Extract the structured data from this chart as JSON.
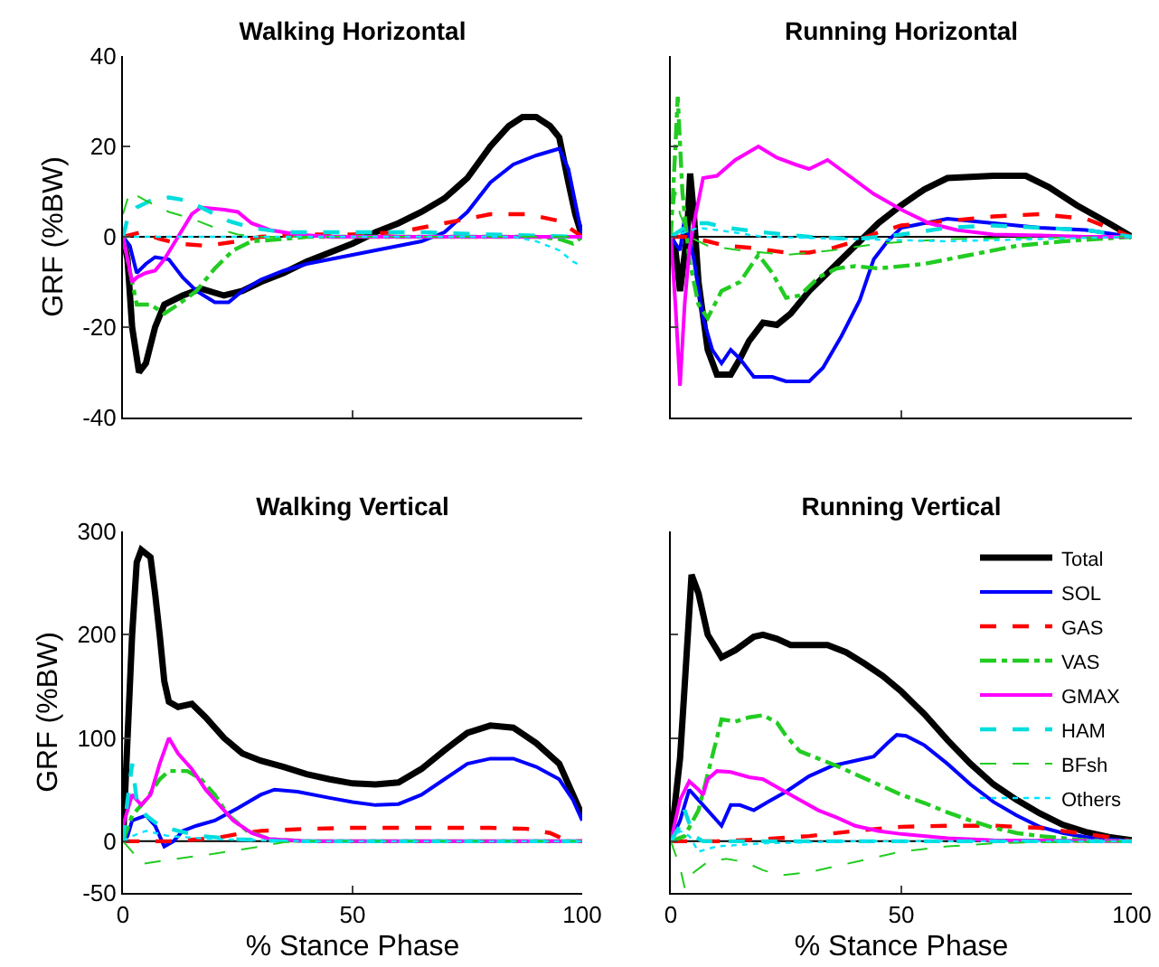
{
  "chart_data": [
    {
      "type": "line",
      "title": "Walking Horizontal",
      "ylabel": "GRF (%BW)",
      "xlim": [
        0,
        100
      ],
      "xticks": [
        {
          "value": 0,
          "label": null
        },
        {
          "value": 50,
          "label": null
        },
        {
          "value": 100,
          "label": null
        }
      ],
      "ylim": [
        -40,
        40
      ],
      "yticks": [
        -40,
        -20,
        0,
        20,
        40
      ],
      "tick_labels": "y",
      "grid": false,
      "legend": false,
      "ref_lines": [
        {
          "axis": "y",
          "value": 0,
          "color": "#000000"
        }
      ],
      "series": [
        {
          "color": "#000000",
          "line_style": "solid",
          "x": [
            0,
            1,
            2,
            3.5,
            5,
            7,
            9,
            13,
            17,
            22,
            26,
            30,
            35,
            40,
            45,
            50,
            55,
            60,
            65,
            70,
            75,
            80,
            84,
            87,
            90,
            93,
            95,
            97,
            98.5,
            100
          ],
          "values": [
            0,
            -5,
            -20,
            -30,
            -28,
            -20,
            -15,
            -13,
            -11.5,
            -13,
            -12,
            -10,
            -8,
            -5.5,
            -3.5,
            -1.5,
            1,
            3,
            5.5,
            8.5,
            13,
            20,
            24.5,
            26.5,
            26.5,
            24.5,
            22,
            12,
            5,
            0
          ]
        },
        {
          "color": "#0000ff",
          "line_style": "solid",
          "x": [
            0,
            1.5,
            3,
            5,
            7,
            10,
            13,
            16,
            20,
            23,
            26,
            30,
            35,
            40,
            50,
            60,
            65,
            70,
            75,
            80,
            85,
            90,
            95,
            97,
            99,
            100
          ],
          "values": [
            0,
            -2,
            -8,
            -6,
            -4.5,
            -5,
            -9,
            -12,
            -14.5,
            -14.5,
            -12,
            -9.5,
            -7.5,
            -6,
            -4,
            -2,
            -1,
            1,
            5.5,
            12,
            16,
            18,
            19.5,
            15,
            5,
            0
          ]
        },
        {
          "color": "#ff0000",
          "line_style": "dashed",
          "x": [
            0,
            4,
            8,
            12,
            18,
            25,
            30,
            40,
            50,
            60,
            70,
            80,
            88,
            95,
            100
          ],
          "values": [
            0,
            1,
            -0.5,
            -1.5,
            -2,
            -1,
            0,
            0.5,
            0.5,
            1,
            3,
            5,
            5,
            3.5,
            0
          ]
        },
        {
          "color": "#22cc22",
          "line_style": "dashdot",
          "x": [
            0,
            1,
            3,
            6,
            9,
            12,
            16,
            20,
            24,
            28,
            35,
            40,
            60,
            90,
            95,
            98,
            100
          ],
          "values": [
            0,
            -5,
            -15,
            -15,
            -17,
            -15,
            -12,
            -7,
            -3,
            -1,
            -0.5,
            0,
            0,
            0,
            -0.5,
            -1.5,
            0
          ]
        },
        {
          "color": "#ff00ff",
          "line_style": "solid",
          "x": [
            0,
            1,
            2,
            3,
            5,
            7,
            9,
            12,
            15,
            17,
            22,
            25,
            28,
            32,
            38,
            45,
            100
          ],
          "values": [
            0,
            -5,
            -10,
            -9,
            -8,
            -7.5,
            -5,
            0,
            5,
            6.5,
            6,
            5.5,
            3,
            1.5,
            0.5,
            0,
            0
          ]
        },
        {
          "color": "#00dddd",
          "line_style": "dashed",
          "x": [
            0,
            1,
            3,
            6,
            10,
            14,
            18,
            23,
            28,
            35,
            45,
            55,
            65,
            80,
            100
          ],
          "values": [
            0,
            4,
            6.5,
            8,
            8.7,
            8,
            6,
            3.5,
            2,
            1,
            1,
            1,
            1,
            0.5,
            0
          ]
        },
        {
          "color": "#22cc22",
          "line_style": "dashed",
          "x": [
            0,
            1.5,
            5,
            10,
            15,
            20,
            25,
            30,
            50,
            100
          ],
          "values": [
            5,
            10,
            8,
            5.5,
            4,
            2,
            0.5,
            0,
            0,
            0
          ]
        },
        {
          "color": "#00e5ff",
          "line_style": "dotted",
          "x": [
            0,
            5,
            20,
            60,
            85,
            90,
            95,
            98,
            100
          ],
          "values": [
            0,
            0,
            0,
            0,
            0,
            -1,
            -3,
            -5.5,
            -6.5
          ]
        }
      ]
    },
    {
      "type": "line",
      "title": "Running Horizontal",
      "xlim": [
        0,
        100
      ],
      "xticks": [
        {
          "value": 0,
          "label": null
        },
        {
          "value": 50,
          "label": null
        },
        {
          "value": 100,
          "label": null
        }
      ],
      "ylim": [
        -40,
        40
      ],
      "yticks": [
        {
          "value": -40,
          "label": null
        },
        {
          "value": -20,
          "label": null
        },
        {
          "value": 0,
          "label": null
        },
        {
          "value": 20,
          "label": null
        },
        {
          "value": 40,
          "label": null
        }
      ],
      "tick_labels": false,
      "grid": false,
      "legend": false,
      "ref_lines": [
        {
          "axis": "y",
          "value": 0,
          "color": "#000000"
        }
      ],
      "series": [
        {
          "color": "#000000",
          "line_style": "solid",
          "x": [
            0,
            1,
            2,
            3.5,
            4.2,
            5,
            6,
            8,
            10,
            13,
            15,
            17,
            20,
            23,
            26,
            30,
            35,
            40,
            45,
            50,
            55,
            60,
            70,
            77,
            82,
            88,
            95,
            100
          ],
          "values": [
            0,
            -3,
            -12,
            0,
            14,
            5,
            -10,
            -25,
            -30.5,
            -30.5,
            -27,
            -23,
            -19,
            -19.5,
            -17,
            -12,
            -7,
            -2,
            3,
            7,
            10.5,
            13,
            13.5,
            13.5,
            11,
            7,
            3,
            0
          ]
        },
        {
          "color": "#0000ff",
          "line_style": "solid",
          "x": [
            0,
            2,
            3,
            5,
            7,
            9,
            11,
            13,
            15,
            18,
            22,
            25,
            30,
            33,
            37,
            41,
            44,
            47,
            50,
            60,
            70,
            80,
            90,
            100
          ],
          "values": [
            0,
            -3,
            4,
            -5,
            -18,
            -25,
            -28,
            -25,
            -27,
            -31,
            -31,
            -32,
            -32,
            -29,
            -22,
            -14,
            -5,
            -1,
            2,
            4,
            3,
            2,
            1.5,
            0
          ]
        },
        {
          "color": "#ff0000",
          "line_style": "dashed",
          "x": [
            0,
            3,
            8,
            12,
            18,
            25,
            30,
            35,
            40,
            45,
            50,
            60,
            70,
            80,
            90,
            100
          ],
          "values": [
            0,
            0,
            -1,
            -2,
            -2.5,
            -3.5,
            -3.5,
            -2.5,
            -1,
            1,
            2.5,
            3.5,
            4.5,
            5,
            4,
            0
          ]
        },
        {
          "color": "#22cc22",
          "line_style": "dashdot",
          "x": [
            0,
            1,
            1.5,
            2.5,
            4,
            6,
            8,
            11,
            15,
            19,
            22,
            25,
            28,
            32,
            36,
            40,
            45,
            55,
            65,
            75,
            85,
            100
          ],
          "values": [
            0,
            20,
            31,
            10,
            -5,
            -15,
            -18,
            -12,
            -10,
            -4,
            -8,
            -13.5,
            -13,
            -9,
            -7,
            -6.5,
            -7,
            -6,
            -4,
            -2,
            -1,
            0
          ]
        },
        {
          "color": "#ff00ff",
          "line_style": "solid",
          "x": [
            0,
            1,
            2,
            3,
            4,
            5,
            7,
            10,
            14,
            19,
            23,
            27,
            30,
            34,
            38,
            44,
            50,
            56,
            62,
            70,
            80,
            90,
            100
          ],
          "values": [
            0,
            -15,
            -33,
            -15,
            -3,
            3,
            13,
            13.5,
            17,
            20,
            17.5,
            16,
            15,
            17,
            14,
            9.5,
            6,
            3,
            1.5,
            0.5,
            0.3,
            0,
            0
          ]
        },
        {
          "color": "#00dddd",
          "line_style": "dashed",
          "x": [
            0,
            3,
            5,
            8,
            12,
            20,
            30,
            40,
            50,
            60,
            70,
            80,
            90,
            100
          ],
          "values": [
            0,
            2,
            3,
            3,
            2,
            1,
            0,
            -0.5,
            0.5,
            2,
            2.5,
            2,
            1.5,
            0
          ]
        },
        {
          "color": "#22cc22",
          "line_style": "dashed",
          "x": [
            0,
            1,
            2,
            4,
            8,
            15,
            25,
            35,
            45,
            60,
            100
          ],
          "values": [
            0,
            10,
            5,
            0,
            -2,
            -3,
            -4,
            -3,
            -1.5,
            -0.5,
            0
          ]
        },
        {
          "color": "#00e5ff",
          "line_style": "dotted",
          "x": [
            0,
            3,
            6,
            10,
            20,
            40,
            60,
            80,
            100
          ],
          "values": [
            0,
            1,
            2,
            1.5,
            0,
            -0.5,
            -1,
            -0.5,
            0
          ]
        }
      ]
    },
    {
      "type": "line",
      "title": "Walking Vertical",
      "xlabel": "% Stance Phase",
      "ylabel": "GRF (%BW)",
      "xlim": [
        0,
        100
      ],
      "xticks": [
        0,
        50,
        100
      ],
      "ylim": [
        -50,
        300
      ],
      "yticks": [
        -50,
        0,
        100,
        200,
        300
      ],
      "grid": false,
      "legend": false,
      "ref_lines": [
        {
          "axis": "y",
          "value": 0,
          "color": "#000000"
        }
      ],
      "series": [
        {
          "color": "#000000",
          "line_style": "solid",
          "x": [
            0,
            1,
            2,
            3,
            4,
            6,
            7,
            8,
            9,
            10,
            12,
            15,
            18,
            22,
            26,
            30,
            35,
            40,
            45,
            50,
            55,
            60,
            65,
            70,
            75,
            80,
            85,
            90,
            95,
            98,
            100
          ],
          "values": [
            0,
            100,
            200,
            270,
            282,
            275,
            240,
            200,
            155,
            135,
            130,
            133,
            120,
            100,
            85,
            78,
            72,
            65,
            60,
            56,
            55,
            57,
            70,
            88,
            105,
            112,
            110,
            95,
            75,
            45,
            25
          ]
        },
        {
          "color": "#0000ff",
          "line_style": "solid",
          "x": [
            0,
            1,
            2,
            5,
            7,
            9,
            11,
            13,
            16,
            20,
            25,
            30,
            33,
            38,
            45,
            50,
            55,
            60,
            65,
            70,
            75,
            80,
            85,
            90,
            95,
            98,
            100
          ],
          "values": [
            0,
            5,
            20,
            25,
            15,
            -5,
            0,
            10,
            15,
            20,
            32,
            45,
            50,
            48,
            42,
            38,
            35,
            36,
            45,
            60,
            75,
            80,
            80,
            72,
            60,
            40,
            20
          ]
        },
        {
          "color": "#ff0000",
          "line_style": "dashed",
          "x": [
            0,
            10,
            20,
            25,
            30,
            40,
            50,
            60,
            70,
            80,
            88,
            93,
            97,
            100
          ],
          "values": [
            0,
            0,
            3,
            7,
            10,
            12,
            13,
            13,
            13,
            13,
            12,
            8,
            0,
            0
          ]
        },
        {
          "color": "#22cc22",
          "line_style": "dashdot",
          "x": [
            0,
            2,
            5,
            8,
            10,
            14,
            17,
            20,
            23,
            27,
            32,
            40,
            100
          ],
          "values": [
            0,
            25,
            40,
            60,
            68,
            68,
            60,
            45,
            25,
            10,
            2,
            0,
            0
          ]
        },
        {
          "color": "#ff00ff",
          "line_style": "solid",
          "x": [
            0,
            2,
            4,
            6,
            8,
            10,
            12,
            15,
            18,
            21,
            24,
            28,
            32,
            40,
            100
          ],
          "values": [
            15,
            45,
            35,
            45,
            75,
            100,
            85,
            70,
            50,
            35,
            20,
            8,
            2,
            0,
            0
          ]
        },
        {
          "color": "#00dddd",
          "line_style": "dashed",
          "x": [
            0,
            1,
            2,
            3,
            5,
            8,
            12,
            17,
            25,
            35,
            100
          ],
          "values": [
            0,
            40,
            75,
            40,
            25,
            15,
            10,
            5,
            2,
            0,
            0
          ]
        },
        {
          "color": "#22cc22",
          "line_style": "dashed",
          "x": [
            0,
            2,
            4,
            10,
            20,
            30,
            35,
            40,
            100
          ],
          "values": [
            0,
            -10,
            -22,
            -18,
            -12,
            -5,
            -1,
            0,
            0
          ]
        },
        {
          "color": "#00e5ff",
          "line_style": "dotted",
          "x": [
            0,
            2,
            5,
            10,
            20,
            40,
            100
          ],
          "values": [
            0,
            5,
            10,
            5,
            2,
            0,
            0
          ]
        }
      ]
    },
    {
      "type": "line",
      "title": "Running Vertical",
      "xlabel": "% Stance Phase",
      "xlim": [
        0,
        100
      ],
      "xticks": [
        0,
        50,
        100
      ],
      "ylim": [
        -50,
        300
      ],
      "yticks": [
        {
          "value": -50,
          "label": null
        },
        {
          "value": 0,
          "label": null
        },
        {
          "value": 100,
          "label": null
        },
        {
          "value": 200,
          "label": null
        },
        {
          "value": 300,
          "label": null
        }
      ],
      "tick_labels": "x",
      "grid": false,
      "legend": "top right",
      "ref_lines": [
        {
          "axis": "y",
          "value": 0,
          "color": "#000000"
        }
      ],
      "series": [
        {
          "name": "Total",
          "color": "#000000",
          "line_style": "solid",
          "x": [
            0,
            2,
            3,
            4.5,
            6,
            8,
            11,
            14,
            18,
            20,
            23,
            26,
            30,
            34,
            38,
            42,
            46,
            50,
            55,
            60,
            65,
            70,
            75,
            80,
            85,
            90,
            95,
            100
          ],
          "values": [
            0,
            80,
            150,
            258,
            240,
            200,
            178,
            185,
            198,
            200,
            196,
            190,
            190,
            190,
            183,
            172,
            160,
            145,
            123,
            98,
            75,
            55,
            40,
            27,
            16,
            9,
            4,
            1
          ]
        },
        {
          "name": "SOL",
          "color": "#0000ff",
          "line_style": "solid",
          "x": [
            0,
            2,
            4,
            6,
            8,
            11,
            13,
            15,
            18,
            21,
            25,
            30,
            35,
            40,
            44,
            47,
            49,
            51,
            55,
            60,
            65,
            70,
            75,
            80,
            85,
            90,
            95,
            100
          ],
          "values": [
            0,
            20,
            50,
            40,
            30,
            15,
            35,
            35,
            30,
            38,
            48,
            63,
            73,
            78,
            82,
            95,
            103,
            102,
            93,
            75,
            55,
            38,
            25,
            14,
            8,
            4,
            2,
            0
          ]
        },
        {
          "name": "GAS",
          "color": "#ff0000",
          "line_style": "dashed",
          "x": [
            0,
            10,
            20,
            30,
            40,
            50,
            60,
            70,
            80,
            90,
            95,
            100
          ],
          "values": [
            0,
            0,
            2,
            5,
            10,
            14,
            15,
            15,
            13,
            7,
            4,
            0
          ]
        },
        {
          "name": "VAS",
          "color": "#22cc22",
          "line_style": "dashdot",
          "x": [
            0,
            3,
            6,
            8,
            10,
            11,
            14,
            17,
            20,
            23,
            25,
            28,
            32,
            36,
            40,
            45,
            50,
            55,
            60,
            65,
            70,
            75,
            80,
            90,
            100
          ],
          "values": [
            0,
            5,
            30,
            65,
            100,
            118,
            116,
            120,
            122,
            115,
            102,
            87,
            80,
            73,
            65,
            55,
            45,
            37,
            28,
            20,
            13,
            8,
            5,
            1,
            0
          ]
        },
        {
          "name": "GMAX",
          "color": "#ff00ff",
          "line_style": "solid",
          "x": [
            0,
            2,
            4,
            6,
            7,
            8,
            10,
            13,
            17,
            20,
            24,
            28,
            32,
            36,
            40,
            45,
            50,
            60,
            70,
            100
          ],
          "values": [
            0,
            40,
            58,
            50,
            45,
            60,
            68,
            67,
            62,
            60,
            50,
            40,
            30,
            23,
            15,
            10,
            7,
            3,
            1,
            0
          ]
        },
        {
          "name": "HAM",
          "color": "#00dddd",
          "line_style": "dashed",
          "x": [
            0,
            2,
            3,
            5,
            7,
            100
          ],
          "values": [
            0,
            15,
            30,
            5,
            0,
            0
          ]
        },
        {
          "name": "BFsh",
          "color": "#22cc22",
          "line_style": "dashed",
          "x": [
            0,
            2,
            3,
            5,
            8,
            12,
            16,
            20,
            24,
            30,
            35,
            40,
            45,
            50,
            60,
            70,
            80,
            100
          ],
          "values": [
            0,
            -25,
            -45,
            -30,
            -20,
            -17,
            -20,
            -28,
            -33,
            -30,
            -25,
            -20,
            -15,
            -10,
            -5,
            -2,
            -1,
            0
          ]
        },
        {
          "name": "Others",
          "color": "#00e5ff",
          "line_style": "dotted",
          "x": [
            0,
            2,
            4,
            6,
            10,
            20,
            40,
            100
          ],
          "values": [
            0,
            10,
            5,
            -10,
            -5,
            -2,
            0,
            0
          ]
        }
      ]
    }
  ]
}
